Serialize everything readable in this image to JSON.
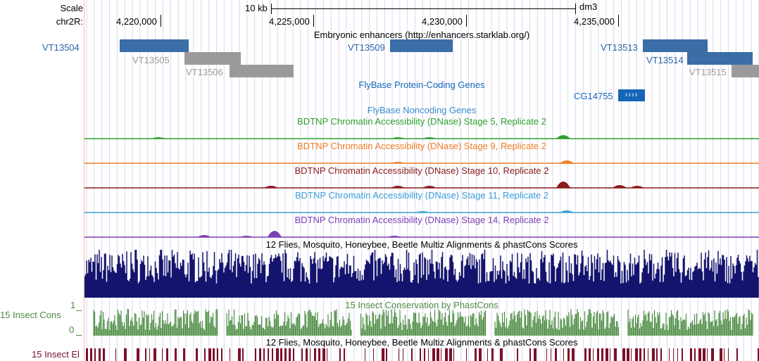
{
  "scale": {
    "label": "Scale",
    "bar_label": "10 kb",
    "assembly": "dm3"
  },
  "position": {
    "chrom_label": "chr2R:",
    "ticks": [
      "4,220,000",
      "4,225,000",
      "4,230,000",
      "4,235,000"
    ]
  },
  "tracks": {
    "enhancers": {
      "title": "Embryonic enhancers (http://enhancers.starklab.org/)",
      "items": [
        "VT13504",
        "VT13505",
        "VT13506",
        "VT13509",
        "VT13513",
        "VT13514",
        "VT13515"
      ]
    },
    "flybase_coding": {
      "title": "FlyBase Protein-Coding Genes",
      "gene": "CG14755"
    },
    "flybase_noncoding": {
      "title": "FlyBase Noncoding Genes"
    },
    "dnase": [
      {
        "title": "BDTNP Chromatin Accessibility (DNase) Stage 5, Replicate 2",
        "color": "#2ca02c"
      },
      {
        "title": "BDTNP Chromatin Accessibility (DNase) Stage 9, Replicate 2",
        "color": "#f07c25"
      },
      {
        "title": "BDTNP Chromatin Accessibility (DNase) Stage 10, Replicate 2",
        "color": "#8b1a1a"
      },
      {
        "title": "BDTNP Chromatin Accessibility (DNase) Stage 11, Replicate 2",
        "color": "#3a9fd6"
      },
      {
        "title": "BDTNP Chromatin Accessibility (DNase) Stage 14, Replicate 2",
        "color": "#7b3fb5"
      }
    ],
    "multiz": {
      "title": "12 Flies, Mosquito, Honeybee, Beetle Multiz Alignments & phastCons Scores",
      "color": "#14146e"
    },
    "insect_cons": {
      "title": "15 Insect Conservation by PhastCons",
      "side_label": "15 Insect Cons",
      "ymax": "1",
      "ymin": "0",
      "color": "#4a8c3f"
    },
    "insect_el": {
      "title": "12 Flies, Mosquito, Honeybee, Beetle Multiz Alignments & phastCons Scores",
      "side_label": "15 Insect El",
      "color": "#7a0f2a"
    }
  },
  "colors": {
    "enhancer_strong": "#3b6da6",
    "enhancer_weak": "#9a9a9a",
    "gene": "#1565b8",
    "grid": "#d8d8f0",
    "label_blue": "#2a64a8"
  }
}
